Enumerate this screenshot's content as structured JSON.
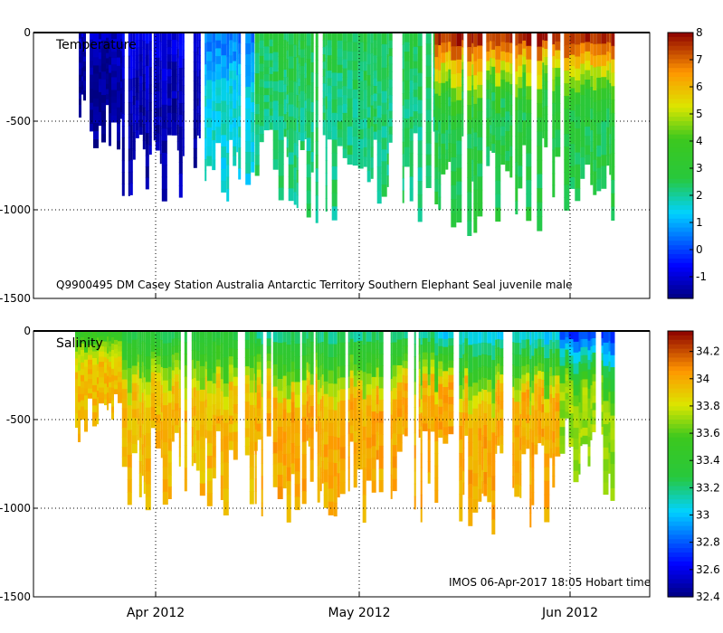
{
  "chart_data": [
    {
      "type": "heatmap",
      "title": "Temperature",
      "annotation": "Q9900495 DM Casey Station Australia Antarctic Territory Southern Elephant Seal juvenile male",
      "xlabel": "",
      "ylabel": "",
      "x_tick_labels": [
        "Apr 2012",
        "May 2012",
        "Jun 2012"
      ],
      "y_tick_labels": [
        "0",
        "-500",
        "-1000",
        "-1500"
      ],
      "y_ticks": [
        0,
        -500,
        -1000,
        -1500
      ],
      "ylim": [
        -1500,
        0
      ],
      "colorbar": {
        "min": -1.8,
        "max": 8,
        "ticks": [
          8,
          7,
          6,
          5,
          4,
          3,
          2,
          1,
          0,
          -1
        ]
      },
      "profiles": {
        "day_range": [
          -17,
          52
        ],
        "segments": [
          {
            "start_day": -17,
            "end_day": -11,
            "surface_value": -1.2,
            "deep_value": -1.6,
            "bottom_m": 550
          },
          {
            "start_day": -11,
            "end_day": -1,
            "surface_value": -0.8,
            "deep_value": -1.4,
            "bottom_m": 880
          },
          {
            "start_day": -1,
            "end_day": 6,
            "surface_value": 0.5,
            "deep_value": 1.6,
            "bottom_m": 850
          },
          {
            "start_day": 6,
            "end_day": 29,
            "surface_value": 2.6,
            "deep_value": 2.2,
            "bottom_m": 900
          },
          {
            "start_day": 29,
            "end_day": 52,
            "surface_value": 7.6,
            "deep_value": 2.6,
            "bottom_m": 960
          }
        ]
      }
    },
    {
      "type": "heatmap",
      "title": "Salinity",
      "annotation": "IMOS 06-Apr-2017 18:05 Hobart time",
      "xlabel": "",
      "ylabel": "",
      "x_tick_labels": [
        "Apr 2012",
        "May 2012",
        "Jun 2012"
      ],
      "y_tick_labels": [
        "0",
        "-500",
        "-1000",
        "-1500"
      ],
      "y_ticks": [
        0,
        -500,
        -1000,
        -1500
      ],
      "ylim": [
        -1500,
        0
      ],
      "colorbar": {
        "min": 32.4,
        "max": 34.35,
        "ticks": [
          34.2,
          34,
          33.8,
          33.6,
          33.4,
          33.2,
          33,
          32.8,
          32.6,
          32.4
        ]
      },
      "profiles": {
        "day_range": [
          -17,
          52
        ],
        "segments": [
          {
            "start_day": -17,
            "end_day": -11,
            "surface_value": 33.5,
            "deep_value": 33.95,
            "bottom_m": 550
          },
          {
            "start_day": -11,
            "end_day": 6,
            "surface_value": 33.3,
            "deep_value": 33.95,
            "bottom_m": 880
          },
          {
            "start_day": 6,
            "end_day": 29,
            "surface_value": 33.2,
            "deep_value": 34.0,
            "bottom_m": 900
          },
          {
            "start_day": 29,
            "end_day": 45,
            "surface_value": 33.05,
            "deep_value": 34.0,
            "bottom_m": 960
          },
          {
            "start_day": 45,
            "end_day": 52,
            "surface_value": 32.75,
            "deep_value": 33.7,
            "bottom_m": 800
          }
        ]
      }
    }
  ]
}
